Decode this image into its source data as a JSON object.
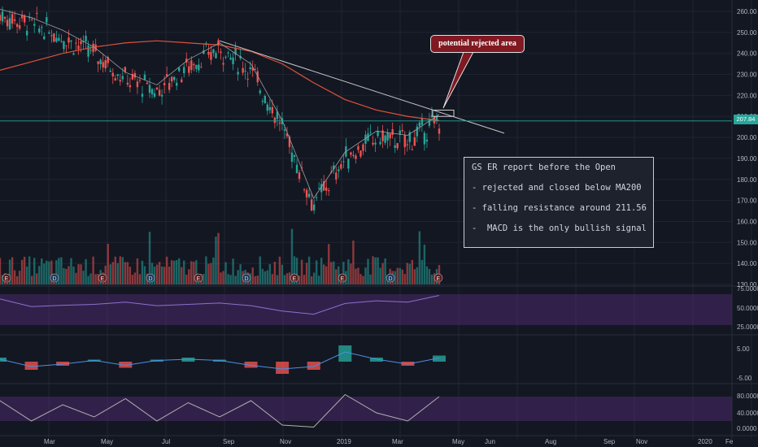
{
  "chart_data": {
    "type": "candlestick",
    "price_axis_ticks": [
      260,
      250,
      240,
      230,
      220,
      210,
      200,
      190,
      180,
      170,
      160,
      150,
      140,
      130
    ],
    "last_price": "207.84",
    "x_tick_labels": [
      "Mar",
      "May",
      "Jul",
      "Sep",
      "Nov",
      "2019",
      "Mar",
      "May",
      "Jun",
      "Aug",
      "Sep",
      "Nov",
      "2020",
      "Fe"
    ],
    "price_series": [
      {
        "name": "close",
        "x": [
          "2018-02",
          "2018-03",
          "2018-04",
          "2018-05",
          "2018-06",
          "2018-07",
          "2018-08",
          "2018-09",
          "2018-10",
          "2018-11",
          "2018-12",
          "2019-01",
          "2019-02",
          "2019-03",
          "2019-04"
        ],
        "values": [
          258,
          254,
          248,
          240,
          228,
          222,
          234,
          242,
          232,
          205,
          168,
          190,
          200,
          198,
          208
        ]
      }
    ],
    "ma200": [
      232,
      236,
      240,
      243,
      245,
      246,
      245,
      244,
      241,
      235,
      226,
      218,
      213,
      210,
      208
    ],
    "resistance_line": {
      "start": [
        "2018-09",
        246
      ],
      "end": [
        "2019-05",
        202
      ]
    },
    "rejected_zone": [
      210,
      213
    ],
    "earnings_markers": [
      "E",
      "D",
      "E",
      "D",
      "E",
      "D",
      "E",
      "E",
      "D",
      "E"
    ],
    "rsi_ticks": [
      "75.0000",
      "50.0000",
      "25.0000"
    ],
    "rsi_series": [
      62,
      45,
      48,
      50,
      55,
      47,
      50,
      53,
      47,
      35,
      28,
      52,
      58,
      55,
      70
    ],
    "macd_ticks": [
      "5.00",
      "-5.00"
    ],
    "macd_hist": [
      1,
      -2,
      -1,
      0.5,
      -1.5,
      0.5,
      1,
      0.5,
      -1.5,
      -3,
      -2,
      4,
      1,
      -1,
      1.5
    ],
    "stoch_ticks": [
      "80.0000",
      "40.0000",
      "0.0000"
    ],
    "stoch_series": [
      70,
      20,
      60,
      30,
      75,
      20,
      65,
      30,
      70,
      10,
      5,
      85,
      40,
      20,
      80
    ]
  },
  "callout": {
    "text": "potential rejected area"
  },
  "notes": {
    "line1": "GS ER report before the Open",
    "line2": "- rejected and closed below MA200",
    "line3": "- falling resistance around 211.56",
    "line4": "-  MACD is the only bullish signal"
  },
  "colors": {
    "bg": "#131722",
    "up": "#26a69a",
    "down": "#ef5350",
    "ma200": "#e0513c",
    "panel": "#4a2a6b",
    "resistance": "#c8c8c8"
  }
}
